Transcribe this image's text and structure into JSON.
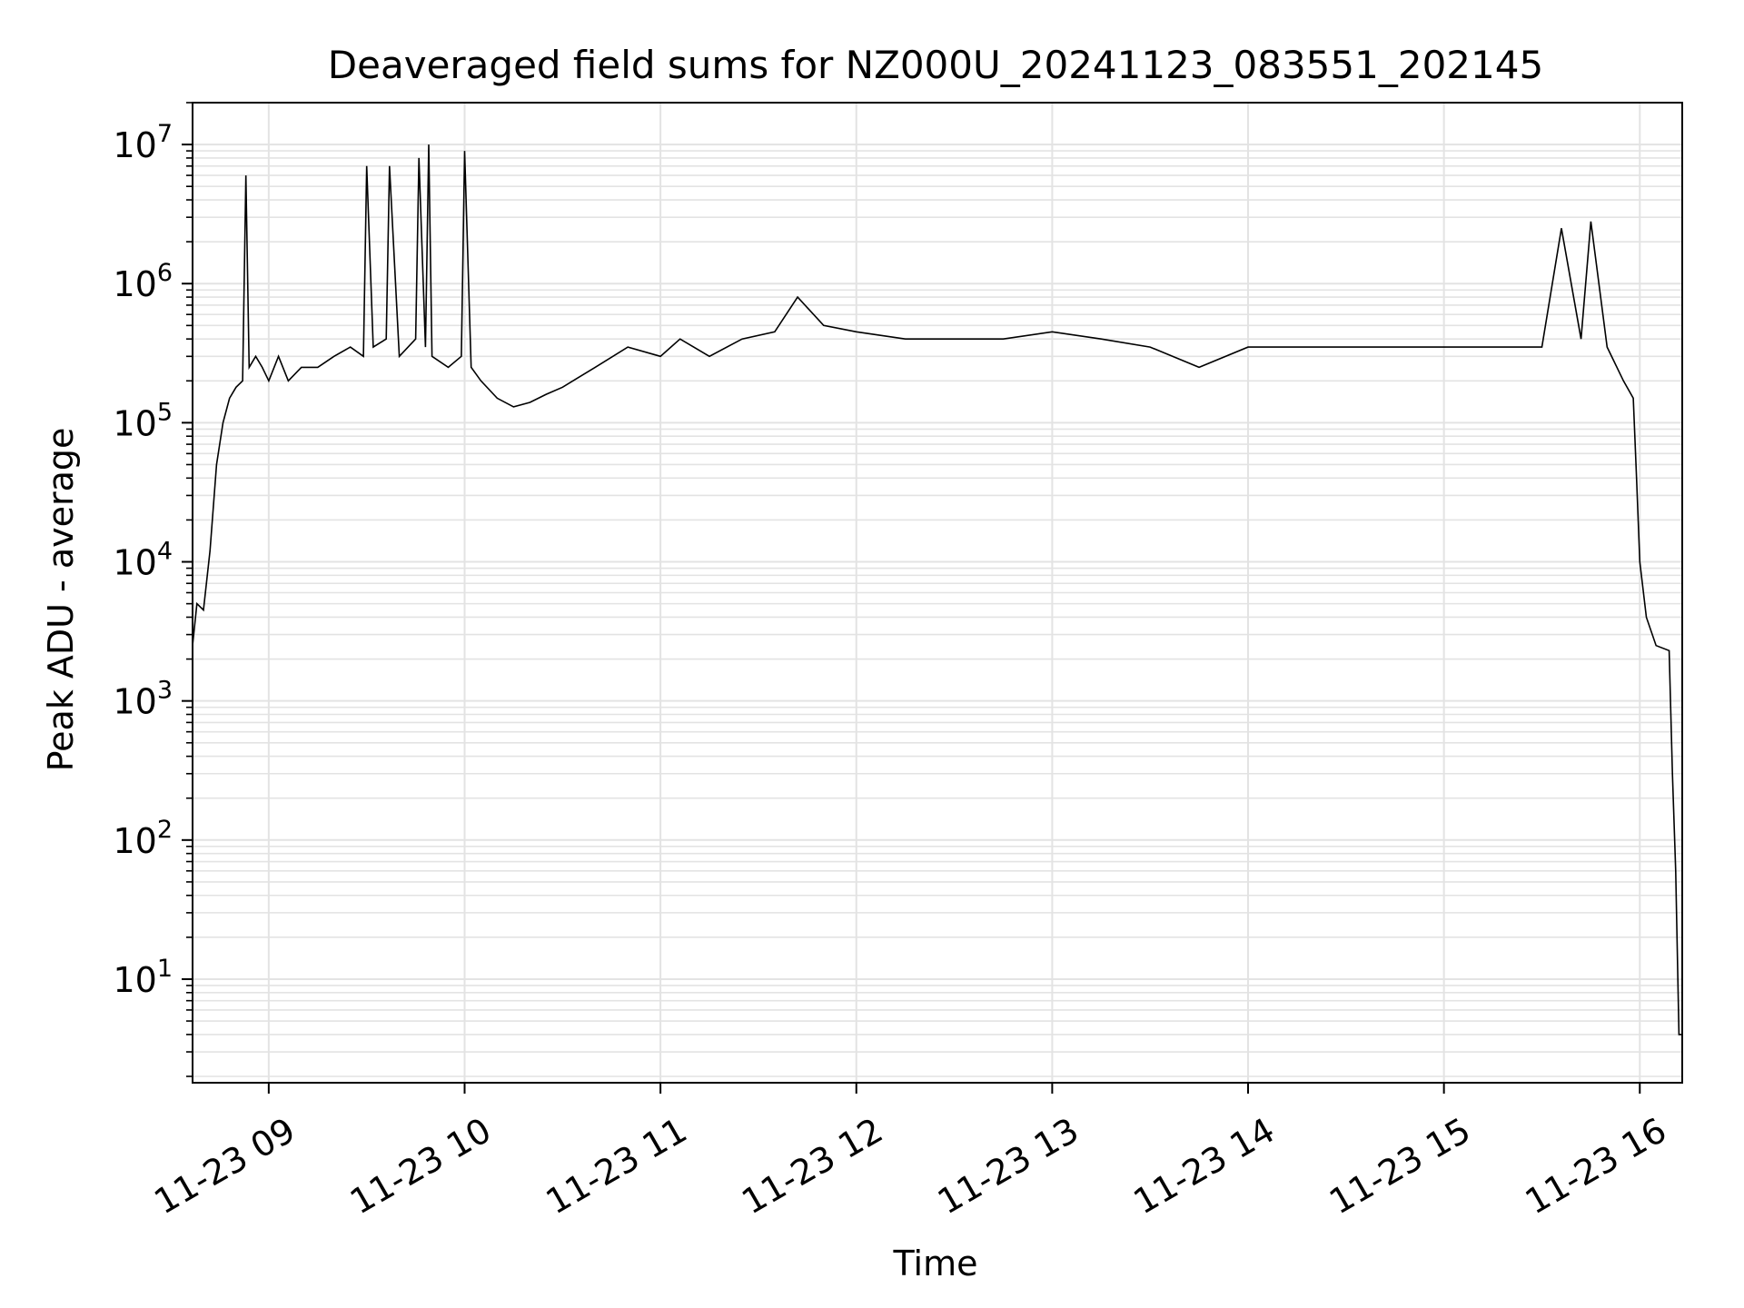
{
  "chart_data": {
    "type": "line",
    "title": "Deaveraged field sums for NZ000U_20241123_083551_202145",
    "xlabel": "Time",
    "ylabel": "Peak ADU - average",
    "yscale": "log",
    "ylim": [
      1.8,
      20000000
    ],
    "xlim": [
      "2024-11-23 08:36:40",
      "2024-11-23 16:13:00"
    ],
    "grid": "major and minor, light gray",
    "legend": "none",
    "line_color": "#000000",
    "grid_color": "#e3e3e3",
    "x_ticks": [
      {
        "value": "2024-11-23 09:00",
        "label": "11-23 09"
      },
      {
        "value": "2024-11-23 10:00",
        "label": "11-23 10"
      },
      {
        "value": "2024-11-23 11:00",
        "label": "11-23 11"
      },
      {
        "value": "2024-11-23 12:00",
        "label": "11-23 12"
      },
      {
        "value": "2024-11-23 13:00",
        "label": "11-23 13"
      },
      {
        "value": "2024-11-23 14:00",
        "label": "11-23 14"
      },
      {
        "value": "2024-11-23 15:00",
        "label": "11-23 15"
      },
      {
        "value": "2024-11-23 16:00",
        "label": "11-23 16"
      }
    ],
    "y_ticks": [
      {
        "value": 10,
        "base": "10",
        "exp": "1"
      },
      {
        "value": 100,
        "base": "10",
        "exp": "2"
      },
      {
        "value": 1000,
        "base": "10",
        "exp": "3"
      },
      {
        "value": 10000,
        "base": "10",
        "exp": "4"
      },
      {
        "value": 100000,
        "base": "10",
        "exp": "5"
      },
      {
        "value": 1000000,
        "base": "10",
        "exp": "6"
      },
      {
        "value": 10000000,
        "base": "10",
        "exp": "7"
      }
    ],
    "x": [
      "2024-11-23 08:36:40",
      "2024-11-23 08:38:00",
      "2024-11-23 08:40:00",
      "2024-11-23 08:42:00",
      "2024-11-23 08:44:00",
      "2024-11-23 08:46:00",
      "2024-11-23 08:48:00",
      "2024-11-23 08:50:00",
      "2024-11-23 08:52:00",
      "2024-11-23 08:53:00",
      "2024-11-23 08:54:00",
      "2024-11-23 08:56:00",
      "2024-11-23 08:58:00",
      "2024-11-23 09:00:00",
      "2024-11-23 09:03:00",
      "2024-11-23 09:06:00",
      "2024-11-23 09:10:00",
      "2024-11-23 09:15:00",
      "2024-11-23 09:20:00",
      "2024-11-23 09:25:00",
      "2024-11-23 09:29:00",
      "2024-11-23 09:30:00",
      "2024-11-23 09:32:00",
      "2024-11-23 09:36:00",
      "2024-11-23 09:37:00",
      "2024-11-23 09:40:00",
      "2024-11-23 09:45:00",
      "2024-11-23 09:46:00",
      "2024-11-23 09:48:00",
      "2024-11-23 09:49:00",
      "2024-11-23 09:50:00",
      "2024-11-23 09:55:00",
      "2024-11-23 09:59:00",
      "2024-11-23 10:00:00",
      "2024-11-23 10:02:00",
      "2024-11-23 10:05:00",
      "2024-11-23 10:10:00",
      "2024-11-23 10:15:00",
      "2024-11-23 10:20:00",
      "2024-11-23 10:25:00",
      "2024-11-23 10:30:00",
      "2024-11-23 10:40:00",
      "2024-11-23 10:50:00",
      "2024-11-23 11:00:00",
      "2024-11-23 11:06:00",
      "2024-11-23 11:15:00",
      "2024-11-23 11:25:00",
      "2024-11-23 11:35:00",
      "2024-11-23 11:42:00",
      "2024-11-23 11:50:00",
      "2024-11-23 12:00:00",
      "2024-11-23 12:15:00",
      "2024-11-23 12:30:00",
      "2024-11-23 12:45:00",
      "2024-11-23 13:00:00",
      "2024-11-23 13:15:00",
      "2024-11-23 13:30:00",
      "2024-11-23 13:45:00",
      "2024-11-23 14:00:00",
      "2024-11-23 14:15:00",
      "2024-11-23 14:30:00",
      "2024-11-23 14:45:00",
      "2024-11-23 15:00:00",
      "2024-11-23 15:15:00",
      "2024-11-23 15:30:00",
      "2024-11-23 15:36:00",
      "2024-11-23 15:42:00",
      "2024-11-23 15:45:00",
      "2024-11-23 15:50:00",
      "2024-11-23 15:55:00",
      "2024-11-23 15:58:00",
      "2024-11-23 15:59:00",
      "2024-11-23 16:00:00",
      "2024-11-23 16:02:00",
      "2024-11-23 16:05:00",
      "2024-11-23 16:09:00",
      "2024-11-23 16:10:00",
      "2024-11-23 16:11:00",
      "2024-11-23 16:12:00",
      "2024-11-23 16:13:00"
    ],
    "values": [
      2500,
      5000,
      4500,
      12000,
      50000,
      100000,
      150000,
      180000,
      200000,
      6000000,
      250000,
      300000,
      250000,
      200000,
      300000,
      200000,
      250000,
      250000,
      300000,
      350000,
      300000,
      7000000,
      350000,
      400000,
      7000000,
      300000,
      400000,
      8000000,
      350000,
      10000000,
      300000,
      250000,
      300000,
      9000000,
      250000,
      200000,
      150000,
      130000,
      140000,
      160000,
      180000,
      250000,
      350000,
      300000,
      400000,
      300000,
      400000,
      450000,
      800000,
      500000,
      450000,
      400000,
      400000,
      400000,
      450000,
      400000,
      350000,
      250000,
      350000,
      350000,
      350000,
      350000,
      350000,
      350000,
      350000,
      2500000,
      400000,
      2800000,
      350000,
      200000,
      150000,
      40000,
      10000,
      4000,
      2500,
      2300,
      300,
      60,
      4,
      4
    ]
  }
}
